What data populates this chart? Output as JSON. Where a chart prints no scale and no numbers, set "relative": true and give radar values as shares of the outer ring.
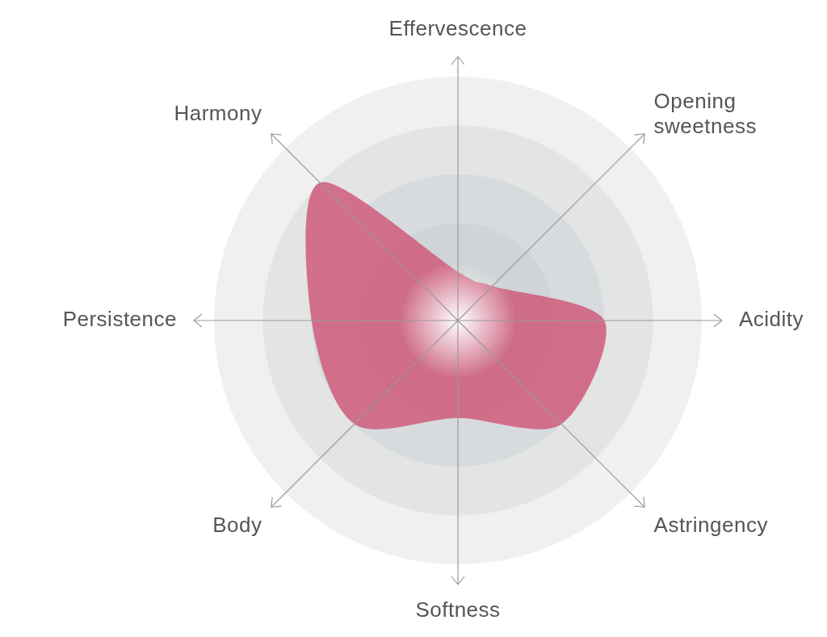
{
  "chart_data": {
    "type": "radar",
    "relative": true,
    "categories": [
      "Effervescence",
      "Opening sweetness",
      "Acidity",
      "Astringency",
      "Softness",
      "Body",
      "Persistence",
      "Harmony"
    ],
    "series": [
      {
        "color": "#cf5f7e",
        "values": [
          0.2,
          0.2,
          0.6,
          0.6,
          0.4,
          0.6,
          0.6,
          0.8
        ]
      }
    ]
  }
}
